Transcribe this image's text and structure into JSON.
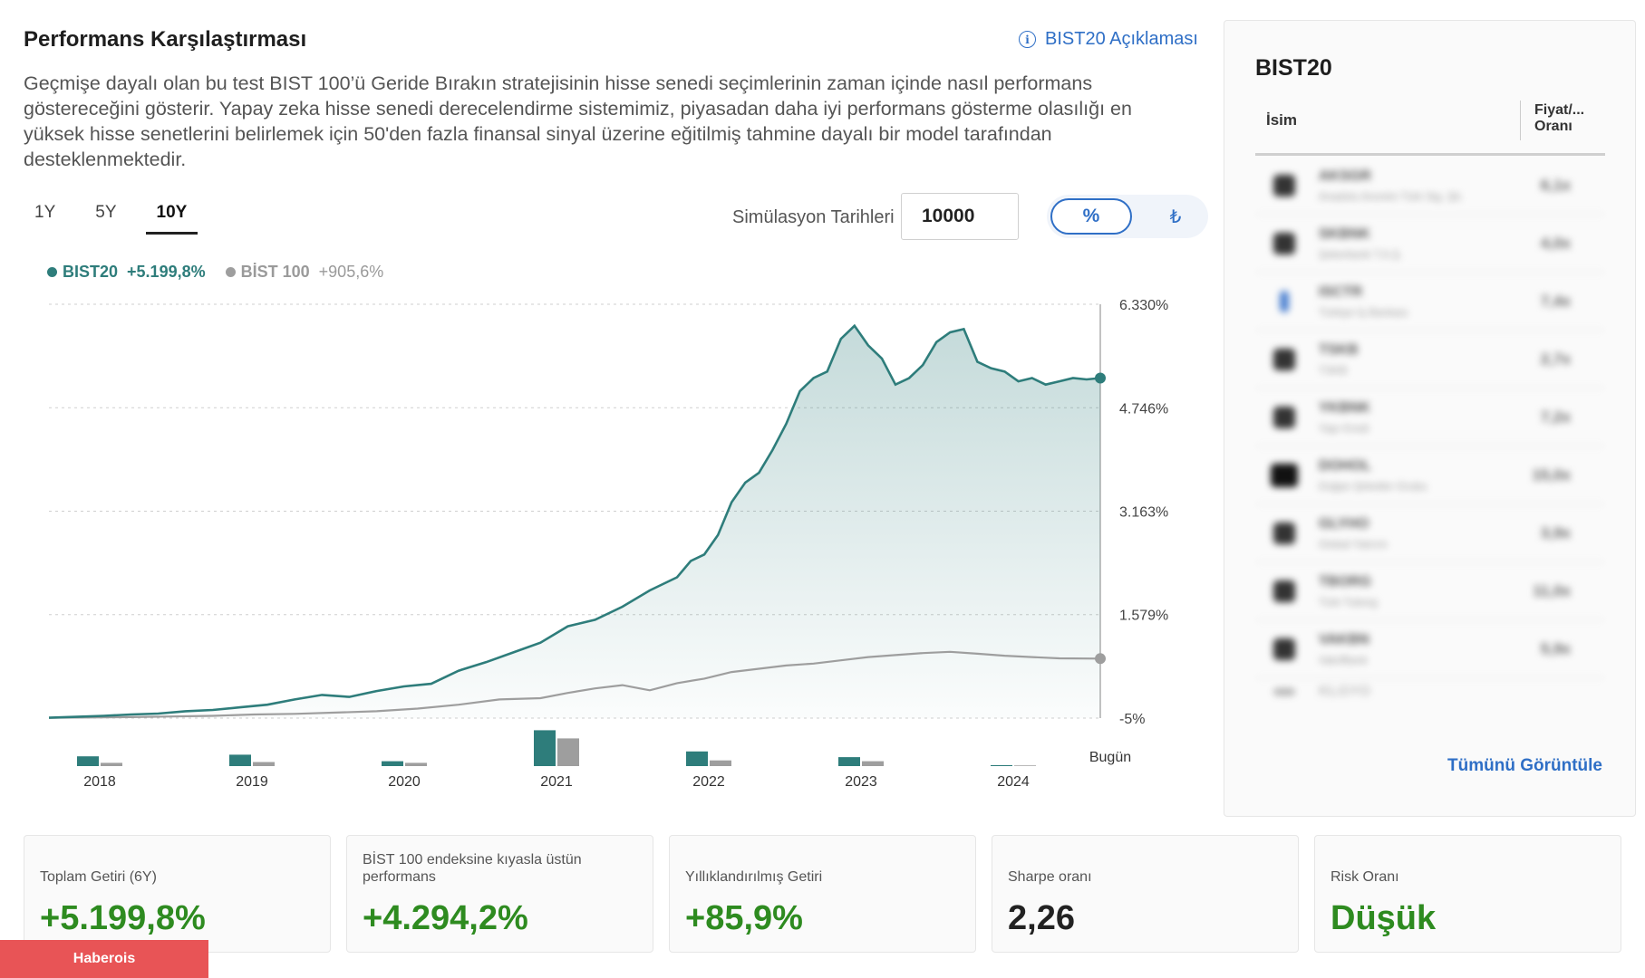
{
  "header": {
    "title": "Performans Karşılaştırması",
    "info_link": "BIST20 Açıklaması",
    "description": "Geçmişe dayalı olan bu test BIST 100’ü Geride Bırakın stratejisinin hisse senedi seçimlerinin zaman içinde nasıl performans göstereceğini gösterir. Yapay zeka hisse senedi derecelendirme sistemimiz, piyasadan daha iyi performans gösterme olasılığı en yüksek hisse senetlerini belirlemek için 50'den fazla finansal sinyal üzerine eğitilmiş tahmine dayalı bir model tarafından desteklenmektedir."
  },
  "controls": {
    "periods": [
      {
        "label": "1Y",
        "active": false
      },
      {
        "label": "5Y",
        "active": false
      },
      {
        "label": "10Y",
        "active": true
      }
    ],
    "simulation_label": "Simülasyon Tarihleri",
    "simulation_value": "10000",
    "toggle_percent": "%",
    "toggle_currency": "₺"
  },
  "legend": {
    "series_a_name": "BIST20",
    "series_a_value": "+5.199,8%",
    "series_b_name": "BİST 100",
    "series_b_value": "+905,6%"
  },
  "chart_data": {
    "type": "line",
    "x_labels": [
      "2018",
      "2019",
      "2020",
      "2021",
      "2022",
      "2023",
      "2024"
    ],
    "end_label": "Bugün",
    "y_ticks": [
      "6.330%",
      "4.746%",
      "3.163%",
      "1.579%",
      "-5%"
    ],
    "y_tick_values": [
      6330,
      4746,
      3163,
      1579,
      -5
    ],
    "ylim": [
      -5,
      6330
    ],
    "colors": {
      "series_a": "#2e7d7b",
      "series_b": "#9e9e9e"
    },
    "series": [
      {
        "name": "BIST20",
        "x": [
          2017.4,
          2017.6,
          2017.8,
          2018.0,
          2018.2,
          2018.4,
          2018.6,
          2018.8,
          2019.0,
          2019.2,
          2019.4,
          2019.6,
          2019.8,
          2020.0,
          2020.2,
          2020.4,
          2020.6,
          2020.8,
          2021.0,
          2021.2,
          2021.4,
          2021.6,
          2021.8,
          2022.0,
          2022.1,
          2022.2,
          2022.3,
          2022.4,
          2022.5,
          2022.6,
          2022.7,
          2022.8,
          2022.9,
          2023.0,
          2023.1,
          2023.2,
          2023.3,
          2023.4,
          2023.5,
          2023.6,
          2023.7,
          2023.8,
          2023.9,
          2024.0,
          2024.1,
          2024.2,
          2024.3,
          2024.4,
          2024.5,
          2024.6,
          2024.7,
          2024.8,
          2024.9,
          2025.0,
          2025.1
        ],
        "values": [
          0,
          15,
          30,
          50,
          65,
          100,
          120,
          160,
          200,
          280,
          350,
          320,
          410,
          480,
          520,
          720,
          850,
          1000,
          1150,
          1400,
          1500,
          1700,
          1950,
          2150,
          2400,
          2500,
          2800,
          3300,
          3600,
          3750,
          4100,
          4500,
          5000,
          5200,
          5300,
          5800,
          6000,
          5700,
          5500,
          5100,
          5200,
          5400,
          5750,
          5900,
          5950,
          5450,
          5350,
          5300,
          5150,
          5200,
          5100,
          5150,
          5200,
          5180,
          5199.8
        ]
      },
      {
        "name": "BİST 100",
        "x": [
          2017.4,
          2017.7,
          2018.0,
          2018.3,
          2018.6,
          2018.9,
          2019.2,
          2019.5,
          2019.8,
          2020.1,
          2020.4,
          2020.7,
          2021.0,
          2021.2,
          2021.4,
          2021.6,
          2021.8,
          2022.0,
          2022.2,
          2022.4,
          2022.6,
          2022.8,
          2023.0,
          2023.2,
          2023.4,
          2023.6,
          2023.8,
          2024.0,
          2024.2,
          2024.4,
          2024.6,
          2024.8,
          2025.1
        ],
        "values": [
          0,
          5,
          10,
          20,
          30,
          50,
          60,
          80,
          100,
          140,
          200,
          280,
          300,
          380,
          450,
          500,
          420,
          530,
          600,
          700,
          750,
          800,
          830,
          880,
          930,
          960,
          990,
          1010,
          980,
          950,
          930,
          910,
          905.6
        ]
      }
    ],
    "annual_bars": [
      {
        "year": "2018",
        "a": 1.2,
        "b": 0.4
      },
      {
        "year": "2019",
        "a": 1.4,
        "b": 0.5
      },
      {
        "year": "2020",
        "a": 0.6,
        "b": 0.4
      },
      {
        "year": "2021",
        "a": 4.4,
        "b": 3.4
      },
      {
        "year": "2022",
        "a": 1.8,
        "b": 0.7
      },
      {
        "year": "2023",
        "a": 1.1,
        "b": 0.6
      },
      {
        "year": "2024",
        "a": 0.12,
        "b": 0.08
      }
    ]
  },
  "sidebar": {
    "title": "BIST20",
    "col_name": "İsim",
    "col_ratio": "Fiyat/... Oranı",
    "rows": [
      {
        "ticker": "AKSGR",
        "company": "Anadolu Anonim Türk Sig. Şti.",
        "ratio": "6,1x"
      },
      {
        "ticker": "SKBNK",
        "company": "Şekerbank T.A.Ş.",
        "ratio": "4,0x"
      },
      {
        "ticker": "ISCTR",
        "company": "Türkiye İş Bankası",
        "ratio": "7,4x"
      },
      {
        "ticker": "TSKB",
        "company": "TSKB",
        "ratio": "2,7x"
      },
      {
        "ticker": "YKBNK",
        "company": "Yapı Kredi",
        "ratio": "7,2x"
      },
      {
        "ticker": "DOHOL",
        "company": "Doğan Şirketler Grubu",
        "ratio": "15,0x"
      },
      {
        "ticker": "GLYHO",
        "company": "Global Yatırım",
        "ratio": "3,9x"
      },
      {
        "ticker": "TBORG",
        "company": "Türk Tuborg",
        "ratio": "11,0x"
      },
      {
        "ticker": "VAKBN",
        "company": "VakıfBank",
        "ratio": "5,9x"
      },
      {
        "ticker": "KLGYO",
        "company": "",
        "ratio": ""
      }
    ],
    "view_all": "Tümünü Görüntüle"
  },
  "metrics": [
    {
      "label": "Toplam Getiri (6Y)",
      "value": "+5.199,8%",
      "tone": "green"
    },
    {
      "label": "BİST 100 endeksine kıyasla üstün performans",
      "value": "+4.294,2%",
      "tone": "green"
    },
    {
      "label": "Yıllıklandırılmış Getiri",
      "value": "+85,9%",
      "tone": "green"
    },
    {
      "label": "Sharpe oranı",
      "value": "2,26",
      "tone": "dark"
    },
    {
      "label": "Risk Oranı",
      "value": "Düşük",
      "tone": "green"
    }
  ],
  "watermark": "Haberois"
}
